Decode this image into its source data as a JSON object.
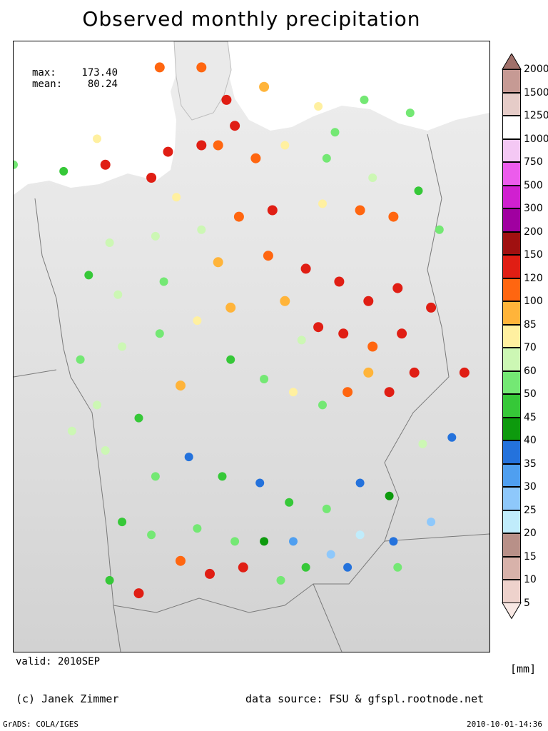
{
  "title": "Observed monthly precipitation",
  "stats": {
    "max_label": "max:",
    "max_value": "173.40",
    "mean_label": "mean:",
    "mean_value": "80.24"
  },
  "valid": "valid: 2010SEP",
  "unit": "[mm]",
  "credit": "(c) Janek Zimmer",
  "source": "data source: FSU & gfspl.rootnode.net",
  "footer_left": "GrADS: COLA/IGES",
  "footer_right": "2010-10-01-14:36",
  "legend": {
    "ticks": [
      "2000",
      "1500",
      "1250",
      "1000",
      "750",
      "500",
      "300",
      "200",
      "150",
      "120",
      "100",
      "85",
      "70",
      "60",
      "50",
      "45",
      "40",
      "35",
      "30",
      "25",
      "20",
      "15",
      "10",
      "5"
    ],
    "colors": [
      "#a0706a",
      "#c69a94",
      "#e6ccc8",
      "#ffffff",
      "#f4c8f4",
      "#ec5cec",
      "#d020d0",
      "#a000a0",
      "#a01010",
      "#e01e14",
      "#ff6610",
      "#ffb43a",
      "#fff0a0",
      "#ccf7b4",
      "#74e874",
      "#36c838",
      "#0d9a0d",
      "#2472dc",
      "#4f9ff0",
      "#8ec8fb",
      "#c0ecfb",
      "#b89088",
      "#d8b2aa",
      "#eed2cc",
      "#f8e8e4"
    ]
  },
  "stations": [
    {
      "lon": 5.0,
      "lat": 53.3,
      "mm": 62
    },
    {
      "lon": 6.2,
      "lat": 53.2,
      "mm": 58
    },
    {
      "lon": 7.0,
      "lat": 53.7,
      "mm": 88
    },
    {
      "lon": 8.5,
      "lat": 54.8,
      "mm": 148
    },
    {
      "lon": 9.5,
      "lat": 54.8,
      "mm": 140
    },
    {
      "lon": 10.1,
      "lat": 54.3,
      "mm": 155
    },
    {
      "lon": 11.0,
      "lat": 54.5,
      "mm": 110
    },
    {
      "lon": 10.3,
      "lat": 53.9,
      "mm": 165
    },
    {
      "lon": 9.5,
      "lat": 53.6,
      "mm": 160
    },
    {
      "lon": 8.7,
      "lat": 53.5,
      "mm": 172
    },
    {
      "lon": 8.3,
      "lat": 53.1,
      "mm": 158
    },
    {
      "lon": 7.2,
      "lat": 53.3,
      "mm": 154
    },
    {
      "lon": 9.9,
      "lat": 53.6,
      "mm": 130
    },
    {
      "lon": 10.8,
      "lat": 53.4,
      "mm": 122
    },
    {
      "lon": 11.5,
      "lat": 53.6,
      "mm": 92
    },
    {
      "lon": 12.3,
      "lat": 54.2,
      "mm": 90
    },
    {
      "lon": 13.4,
      "lat": 54.3,
      "mm": 65
    },
    {
      "lon": 14.5,
      "lat": 54.1,
      "mm": 60
    },
    {
      "lon": 12.5,
      "lat": 53.4,
      "mm": 66
    },
    {
      "lon": 13.6,
      "lat": 53.1,
      "mm": 78
    },
    {
      "lon": 14.7,
      "lat": 52.9,
      "mm": 55
    },
    {
      "lon": 10.4,
      "lat": 52.5,
      "mm": 130
    },
    {
      "lon": 11.2,
      "lat": 52.6,
      "mm": 155
    },
    {
      "lon": 12.4,
      "lat": 52.7,
      "mm": 88
    },
    {
      "lon": 13.3,
      "lat": 52.6,
      "mm": 122
    },
    {
      "lon": 14.1,
      "lat": 52.5,
      "mm": 125
    },
    {
      "lon": 9.5,
      "lat": 52.3,
      "mm": 80
    },
    {
      "lon": 8.4,
      "lat": 52.2,
      "mm": 74
    },
    {
      "lon": 7.3,
      "lat": 52.1,
      "mm": 72
    },
    {
      "lon": 6.8,
      "lat": 51.6,
      "mm": 58
    },
    {
      "lon": 7.5,
      "lat": 51.3,
      "mm": 70
    },
    {
      "lon": 8.6,
      "lat": 51.5,
      "mm": 66
    },
    {
      "lon": 9.9,
      "lat": 51.8,
      "mm": 110
    },
    {
      "lon": 11.1,
      "lat": 51.9,
      "mm": 140
    },
    {
      "lon": 12.0,
      "lat": 51.7,
      "mm": 170
    },
    {
      "lon": 12.8,
      "lat": 51.5,
      "mm": 155
    },
    {
      "lon": 13.5,
      "lat": 51.2,
      "mm": 165
    },
    {
      "lon": 14.2,
      "lat": 51.4,
      "mm": 160
    },
    {
      "lon": 15.0,
      "lat": 51.1,
      "mm": 150
    },
    {
      "lon": 11.5,
      "lat": 51.2,
      "mm": 118
    },
    {
      "lon": 12.3,
      "lat": 50.8,
      "mm": 170
    },
    {
      "lon": 12.9,
      "lat": 50.7,
      "mm": 150
    },
    {
      "lon": 13.6,
      "lat": 50.5,
      "mm": 120
    },
    {
      "lon": 14.3,
      "lat": 50.7,
      "mm": 152
    },
    {
      "lon": 13.5,
      "lat": 50.1,
      "mm": 105
    },
    {
      "lon": 14.0,
      "lat": 49.8,
      "mm": 155
    },
    {
      "lon": 14.6,
      "lat": 50.1,
      "mm": 172
    },
    {
      "lon": 15.8,
      "lat": 50.1,
      "mm": 168
    },
    {
      "lon": 13.0,
      "lat": 49.8,
      "mm": 145
    },
    {
      "lon": 10.2,
      "lat": 51.1,
      "mm": 110
    },
    {
      "lon": 9.4,
      "lat": 50.9,
      "mm": 85
    },
    {
      "lon": 8.5,
      "lat": 50.7,
      "mm": 63
    },
    {
      "lon": 7.6,
      "lat": 50.5,
      "mm": 72
    },
    {
      "lon": 6.6,
      "lat": 50.3,
      "mm": 62
    },
    {
      "lon": 7.0,
      "lat": 49.6,
      "mm": 80
    },
    {
      "lon": 8.0,
      "lat": 49.4,
      "mm": 58
    },
    {
      "lon": 9.0,
      "lat": 49.9,
      "mm": 105
    },
    {
      "lon": 10.2,
      "lat": 50.3,
      "mm": 57
    },
    {
      "lon": 11.0,
      "lat": 50.0,
      "mm": 65
    },
    {
      "lon": 11.7,
      "lat": 49.8,
      "mm": 90
    },
    {
      "lon": 12.4,
      "lat": 49.6,
      "mm": 66
    },
    {
      "lon": 6.4,
      "lat": 49.2,
      "mm": 70
    },
    {
      "lon": 7.2,
      "lat": 48.9,
      "mm": 72
    },
    {
      "lon": 8.4,
      "lat": 48.5,
      "mm": 62
    },
    {
      "lon": 9.2,
      "lat": 48.8,
      "mm": 44
    },
    {
      "lon": 10.0,
      "lat": 48.5,
      "mm": 55
    },
    {
      "lon": 10.9,
      "lat": 48.4,
      "mm": 44
    },
    {
      "lon": 11.6,
      "lat": 48.1,
      "mm": 55
    },
    {
      "lon": 12.5,
      "lat": 48.0,
      "mm": 62
    },
    {
      "lon": 13.3,
      "lat": 48.4,
      "mm": 42
    },
    {
      "lon": 14.0,
      "lat": 48.2,
      "mm": 47
    },
    {
      "lon": 7.6,
      "lat": 47.8,
      "mm": 57
    },
    {
      "lon": 8.3,
      "lat": 47.6,
      "mm": 60
    },
    {
      "lon": 9.4,
      "lat": 47.7,
      "mm": 64
    },
    {
      "lon": 10.3,
      "lat": 47.5,
      "mm": 60
    },
    {
      "lon": 11.0,
      "lat": 47.5,
      "mm": 46
    },
    {
      "lon": 11.7,
      "lat": 47.5,
      "mm": 38
    },
    {
      "lon": 12.6,
      "lat": 47.3,
      "mm": 32
    },
    {
      "lon": 13.3,
      "lat": 47.6,
      "mm": 28
    },
    {
      "lon": 14.1,
      "lat": 47.5,
      "mm": 40
    },
    {
      "lon": 15.0,
      "lat": 47.8,
      "mm": 33
    },
    {
      "lon": 9.0,
      "lat": 47.2,
      "mm": 130
    },
    {
      "lon": 9.7,
      "lat": 47.0,
      "mm": 165
    },
    {
      "lon": 10.5,
      "lat": 47.1,
      "mm": 158
    },
    {
      "lon": 11.4,
      "lat": 46.9,
      "mm": 60
    },
    {
      "lon": 7.3,
      "lat": 46.9,
      "mm": 56
    },
    {
      "lon": 8.0,
      "lat": 46.7,
      "mm": 150
    },
    {
      "lon": 12.0,
      "lat": 47.1,
      "mm": 55
    },
    {
      "lon": 13.0,
      "lat": 47.1,
      "mm": 40
    },
    {
      "lon": 14.2,
      "lat": 47.1,
      "mm": 62
    },
    {
      "lon": 15.2,
      "lat": 52.3,
      "mm": 65
    },
    {
      "lon": 15.5,
      "lat": 49.1,
      "mm": 42
    },
    {
      "lon": 14.8,
      "lat": 49.0,
      "mm": 70
    },
    {
      "lon": 11.9,
      "lat": 50.6,
      "mm": 72
    },
    {
      "lon": 12.7,
      "lat": 53.8,
      "mm": 60
    },
    {
      "lon": 8.9,
      "lat": 52.8,
      "mm": 90
    }
  ]
}
